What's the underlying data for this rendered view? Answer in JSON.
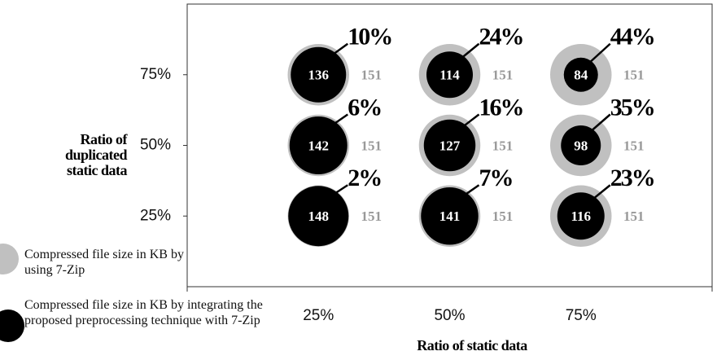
{
  "chart_data": {
    "type": "bubble",
    "x_label": "Ratio of static data",
    "y_label": "Ratio of duplicated static data",
    "xlim": [
      0,
      100
    ],
    "ylim": [
      0,
      100
    ],
    "xticks": [
      {
        "value": 25,
        "label": "25%"
      },
      {
        "value": 50,
        "label": "50%"
      },
      {
        "value": 75,
        "label": "75%"
      }
    ],
    "yticks": [
      {
        "value": 25,
        "label": "25%"
      },
      {
        "value": 50,
        "label": "50%"
      },
      {
        "value": 75,
        "label": "75%"
      }
    ],
    "series": [
      {
        "name": "Compressed file size in KB by using 7-Zip",
        "color": "#c0c0c0",
        "x": [
          25,
          50,
          75,
          25,
          50,
          75,
          25,
          50,
          75
        ],
        "y": [
          75,
          75,
          75,
          50,
          50,
          50,
          25,
          25,
          25
        ],
        "sizes": [
          151,
          151,
          151,
          151,
          151,
          151,
          151,
          151,
          151
        ]
      },
      {
        "name": "Compressed file size in KB by integrating the proposed preprocessing technique with 7-Zip",
        "color": "#000000",
        "x": [
          25,
          50,
          75,
          25,
          50,
          75,
          25,
          50,
          75
        ],
        "y": [
          75,
          75,
          75,
          50,
          50,
          50,
          25,
          25,
          25
        ],
        "sizes": [
          136,
          114,
          84,
          142,
          127,
          98,
          148,
          141,
          116
        ]
      }
    ],
    "annotations": [
      "10%",
      "24%",
      "44%",
      "6%",
      "16%",
      "35%",
      "2%",
      "7%",
      "23%"
    ]
  }
}
